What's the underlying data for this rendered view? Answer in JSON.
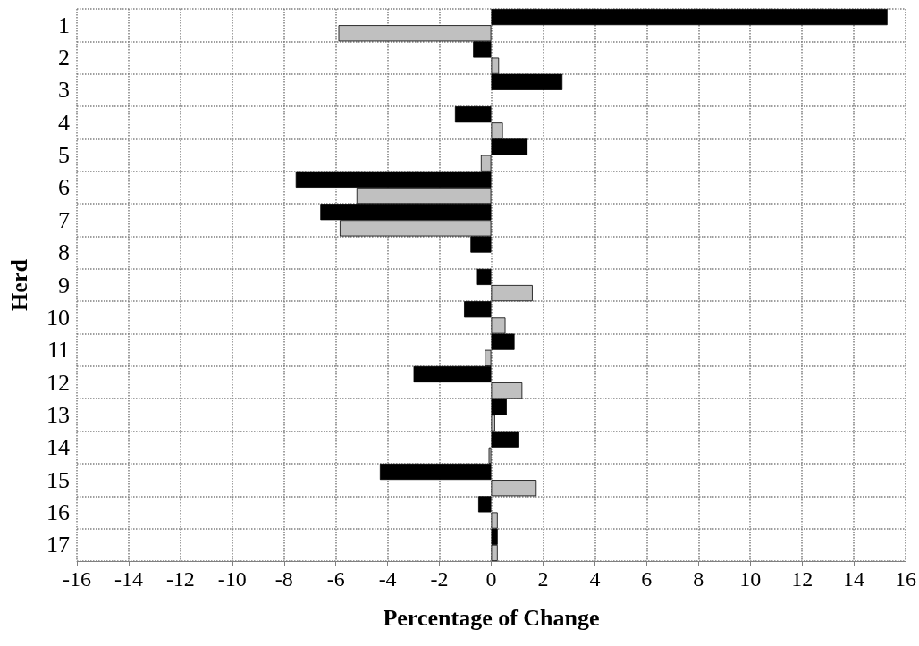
{
  "chart_data": {
    "type": "bar",
    "orientation": "horizontal",
    "xlabel": "Percentage of Change",
    "ylabel": "Herd",
    "categories": [
      "1",
      "2",
      "3",
      "4",
      "5",
      "6",
      "7",
      "8",
      "9",
      "10",
      "11",
      "12",
      "13",
      "14",
      "15",
      "16",
      "17"
    ],
    "series": [
      {
        "color": "#000000",
        "values": [
          15.3,
          -0.7,
          2.75,
          -1.4,
          1.4,
          -7.55,
          -6.6,
          -0.8,
          -0.55,
          -1.05,
          0.9,
          -3.0,
          0.6,
          1.05,
          -4.3,
          -0.5,
          0.25
        ]
      },
      {
        "color": "#c0c0c0",
        "values": [
          -5.9,
          0.3,
          null,
          0.45,
          -0.4,
          -5.2,
          -5.85,
          null,
          1.6,
          0.55,
          -0.25,
          1.2,
          0.15,
          -0.1,
          1.75,
          0.25,
          0.25
        ]
      }
    ],
    "xlim": [
      -16,
      16
    ],
    "xticks": [
      -16,
      -14,
      -12,
      -10,
      -8,
      -6,
      -4,
      -2,
      0,
      2,
      4,
      6,
      8,
      10,
      12,
      14,
      16
    ],
    "grid": true
  }
}
